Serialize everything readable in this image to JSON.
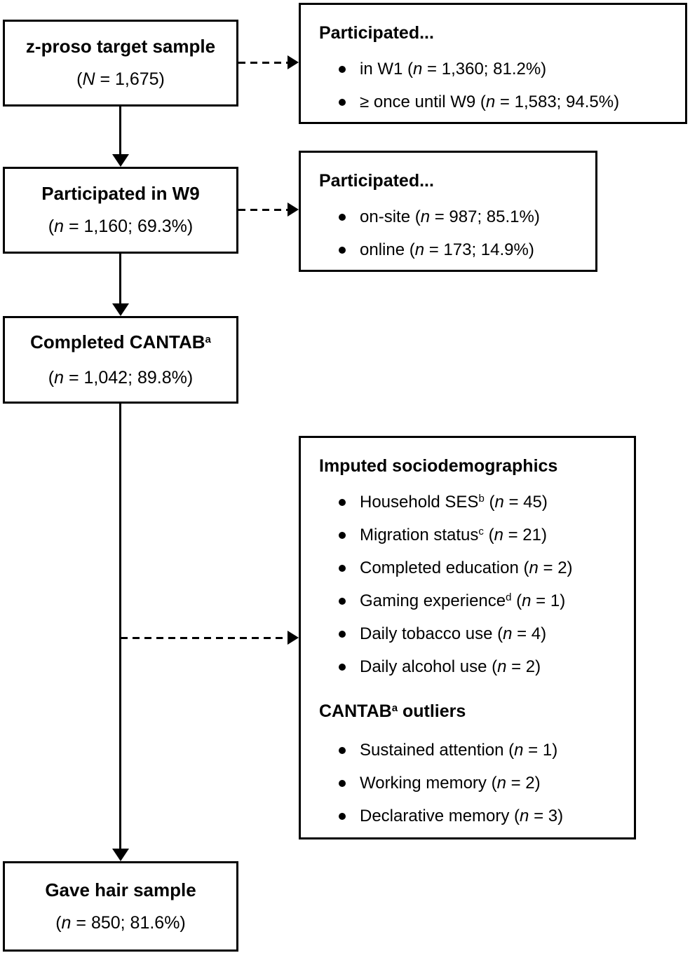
{
  "colors": {
    "ink": "#000000",
    "paper": "#ffffff"
  },
  "flow_boxes": [
    {
      "title": [
        {
          "t": "z-proso target sample",
          "s": "b"
        }
      ],
      "sub": [
        {
          "t": "(",
          "s": ""
        },
        {
          "t": "N",
          "s": "i"
        },
        {
          "t": " = 1,675)",
          "s": ""
        }
      ]
    },
    {
      "title": [
        {
          "t": "Participated in W9",
          "s": "b"
        }
      ],
      "sub": [
        {
          "t": "(",
          "s": ""
        },
        {
          "t": "n",
          "s": "i"
        },
        {
          "t": " = 1,160; 69.3%)",
          "s": ""
        }
      ]
    },
    {
      "title": [
        {
          "t": "Completed CANTAB",
          "s": "b"
        },
        {
          "t": "a",
          "s": "b sup"
        }
      ],
      "sub": [
        {
          "t": "(",
          "s": ""
        },
        {
          "t": "n",
          "s": "i"
        },
        {
          "t": " = 1,042; 89.8%)",
          "s": ""
        }
      ]
    },
    {
      "title": [
        {
          "t": "Gave hair sample",
          "s": "b"
        }
      ],
      "sub": [
        {
          "t": "(",
          "s": ""
        },
        {
          "t": "n",
          "s": "i"
        },
        {
          "t": " = 850; 81.6%)",
          "s": ""
        }
      ]
    }
  ],
  "side_boxes": [
    {
      "heading": [
        {
          "t": "Participated...",
          "s": "b"
        }
      ],
      "bullets": [
        [
          {
            "t": "in W1 (",
            "s": ""
          },
          {
            "t": "n",
            "s": "i"
          },
          {
            "t": " = 1,360; 81.2%)",
            "s": ""
          }
        ],
        [
          {
            "t": "≥ once until W9 (",
            "s": ""
          },
          {
            "t": "n",
            "s": "i"
          },
          {
            "t": " = 1,583; 94.5%)",
            "s": ""
          }
        ]
      ]
    },
    {
      "heading": [
        {
          "t": "Participated...",
          "s": "b"
        }
      ],
      "bullets": [
        [
          {
            "t": "on-site (",
            "s": ""
          },
          {
            "t": "n",
            "s": "i"
          },
          {
            "t": " = 987; 85.1%)",
            "s": ""
          }
        ],
        [
          {
            "t": "online (",
            "s": ""
          },
          {
            "t": "n",
            "s": "i"
          },
          {
            "t": " = 173; 14.9%)",
            "s": ""
          }
        ]
      ]
    }
  ],
  "big_box": {
    "sections": [
      {
        "heading": [
          {
            "t": "Imputed sociodemographics",
            "s": "b"
          }
        ],
        "bullets": [
          [
            {
              "t": "Household SES",
              "s": ""
            },
            {
              "t": "b",
              "s": "sup"
            },
            {
              "t": " (",
              "s": ""
            },
            {
              "t": "n",
              "s": "i"
            },
            {
              "t": " = 45)",
              "s": ""
            }
          ],
          [
            {
              "t": "Migration status",
              "s": ""
            },
            {
              "t": "c",
              "s": "sup"
            },
            {
              "t": " (",
              "s": ""
            },
            {
              "t": "n",
              "s": "i"
            },
            {
              "t": " = 21)",
              "s": ""
            }
          ],
          [
            {
              "t": "Completed education (",
              "s": ""
            },
            {
              "t": "n",
              "s": "i"
            },
            {
              "t": " = 2)",
              "s": ""
            }
          ],
          [
            {
              "t": "Gaming experience",
              "s": ""
            },
            {
              "t": "d",
              "s": "sup"
            },
            {
              "t": " (",
              "s": ""
            },
            {
              "t": "n",
              "s": "i"
            },
            {
              "t": " = 1)",
              "s": ""
            }
          ],
          [
            {
              "t": "Daily tobacco use (",
              "s": ""
            },
            {
              "t": "n",
              "s": "i"
            },
            {
              "t": " = 4)",
              "s": ""
            }
          ],
          [
            {
              "t": "Daily alcohol use (",
              "s": ""
            },
            {
              "t": "n",
              "s": "i"
            },
            {
              "t": " = 2)",
              "s": ""
            }
          ]
        ]
      },
      {
        "heading": [
          {
            "t": "CANTAB",
            "s": "b"
          },
          {
            "t": "a",
            "s": "b sup"
          },
          {
            "t": " outliers",
            "s": "b"
          }
        ],
        "bullets": [
          [
            {
              "t": "Sustained attention (",
              "s": ""
            },
            {
              "t": "n",
              "s": "i"
            },
            {
              "t": " = 1)",
              "s": ""
            }
          ],
          [
            {
              "t": "Working memory (",
              "s": ""
            },
            {
              "t": "n",
              "s": "i"
            },
            {
              "t": " = 2)",
              "s": ""
            }
          ],
          [
            {
              "t": "Declarative memory (",
              "s": ""
            },
            {
              "t": "n",
              "s": "i"
            },
            {
              "t": " = 3)",
              "s": ""
            }
          ]
        ]
      }
    ]
  }
}
